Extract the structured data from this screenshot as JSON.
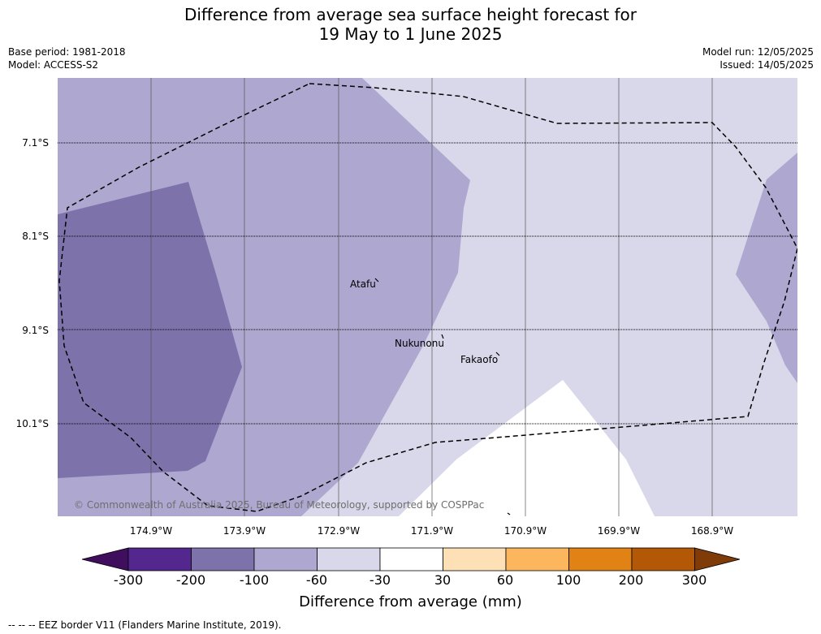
{
  "title": {
    "line1": "Difference from average sea surface height forecast for",
    "line2": "19 May to 1 June 2025"
  },
  "meta": {
    "base_period": "Base period: 1981-2018",
    "model": "Model: ACCESS-S2",
    "model_run": "Model run: 12/05/2025",
    "issued": "Issued: 14/05/2025"
  },
  "map": {
    "latitude_labels": [
      "7.1°S",
      "8.1°S",
      "9.1°S",
      "10.1°S"
    ],
    "longitude_labels": [
      "174.9°W",
      "173.9°W",
      "172.9°W",
      "171.9°W",
      "170.9°W",
      "169.9°W",
      "168.9°W"
    ],
    "places": [
      "Atafu",
      "Nukunonu",
      "Fakaofo"
    ],
    "copyright": "© Commonwealth of Australia 2025, Bureau of Meteorology, supported by COSPPac"
  },
  "colorbar": {
    "ticks": [
      "-300",
      "-200",
      "-100",
      "-60",
      "-30",
      "30",
      "60",
      "100",
      "200",
      "300"
    ],
    "colors": [
      "#3f0f5e",
      "#54278f",
      "#7e72ab",
      "#aea8d0",
      "#d8d8ea",
      "#ffffff",
      "#fee0b6",
      "#fcb75e",
      "#e08214",
      "#b35806",
      "#7f3b08"
    ],
    "label": "Difference from average (mm)"
  },
  "footer": "--  --  -- EEZ border V11 (Flanders Marine Institute, 2019)."
}
